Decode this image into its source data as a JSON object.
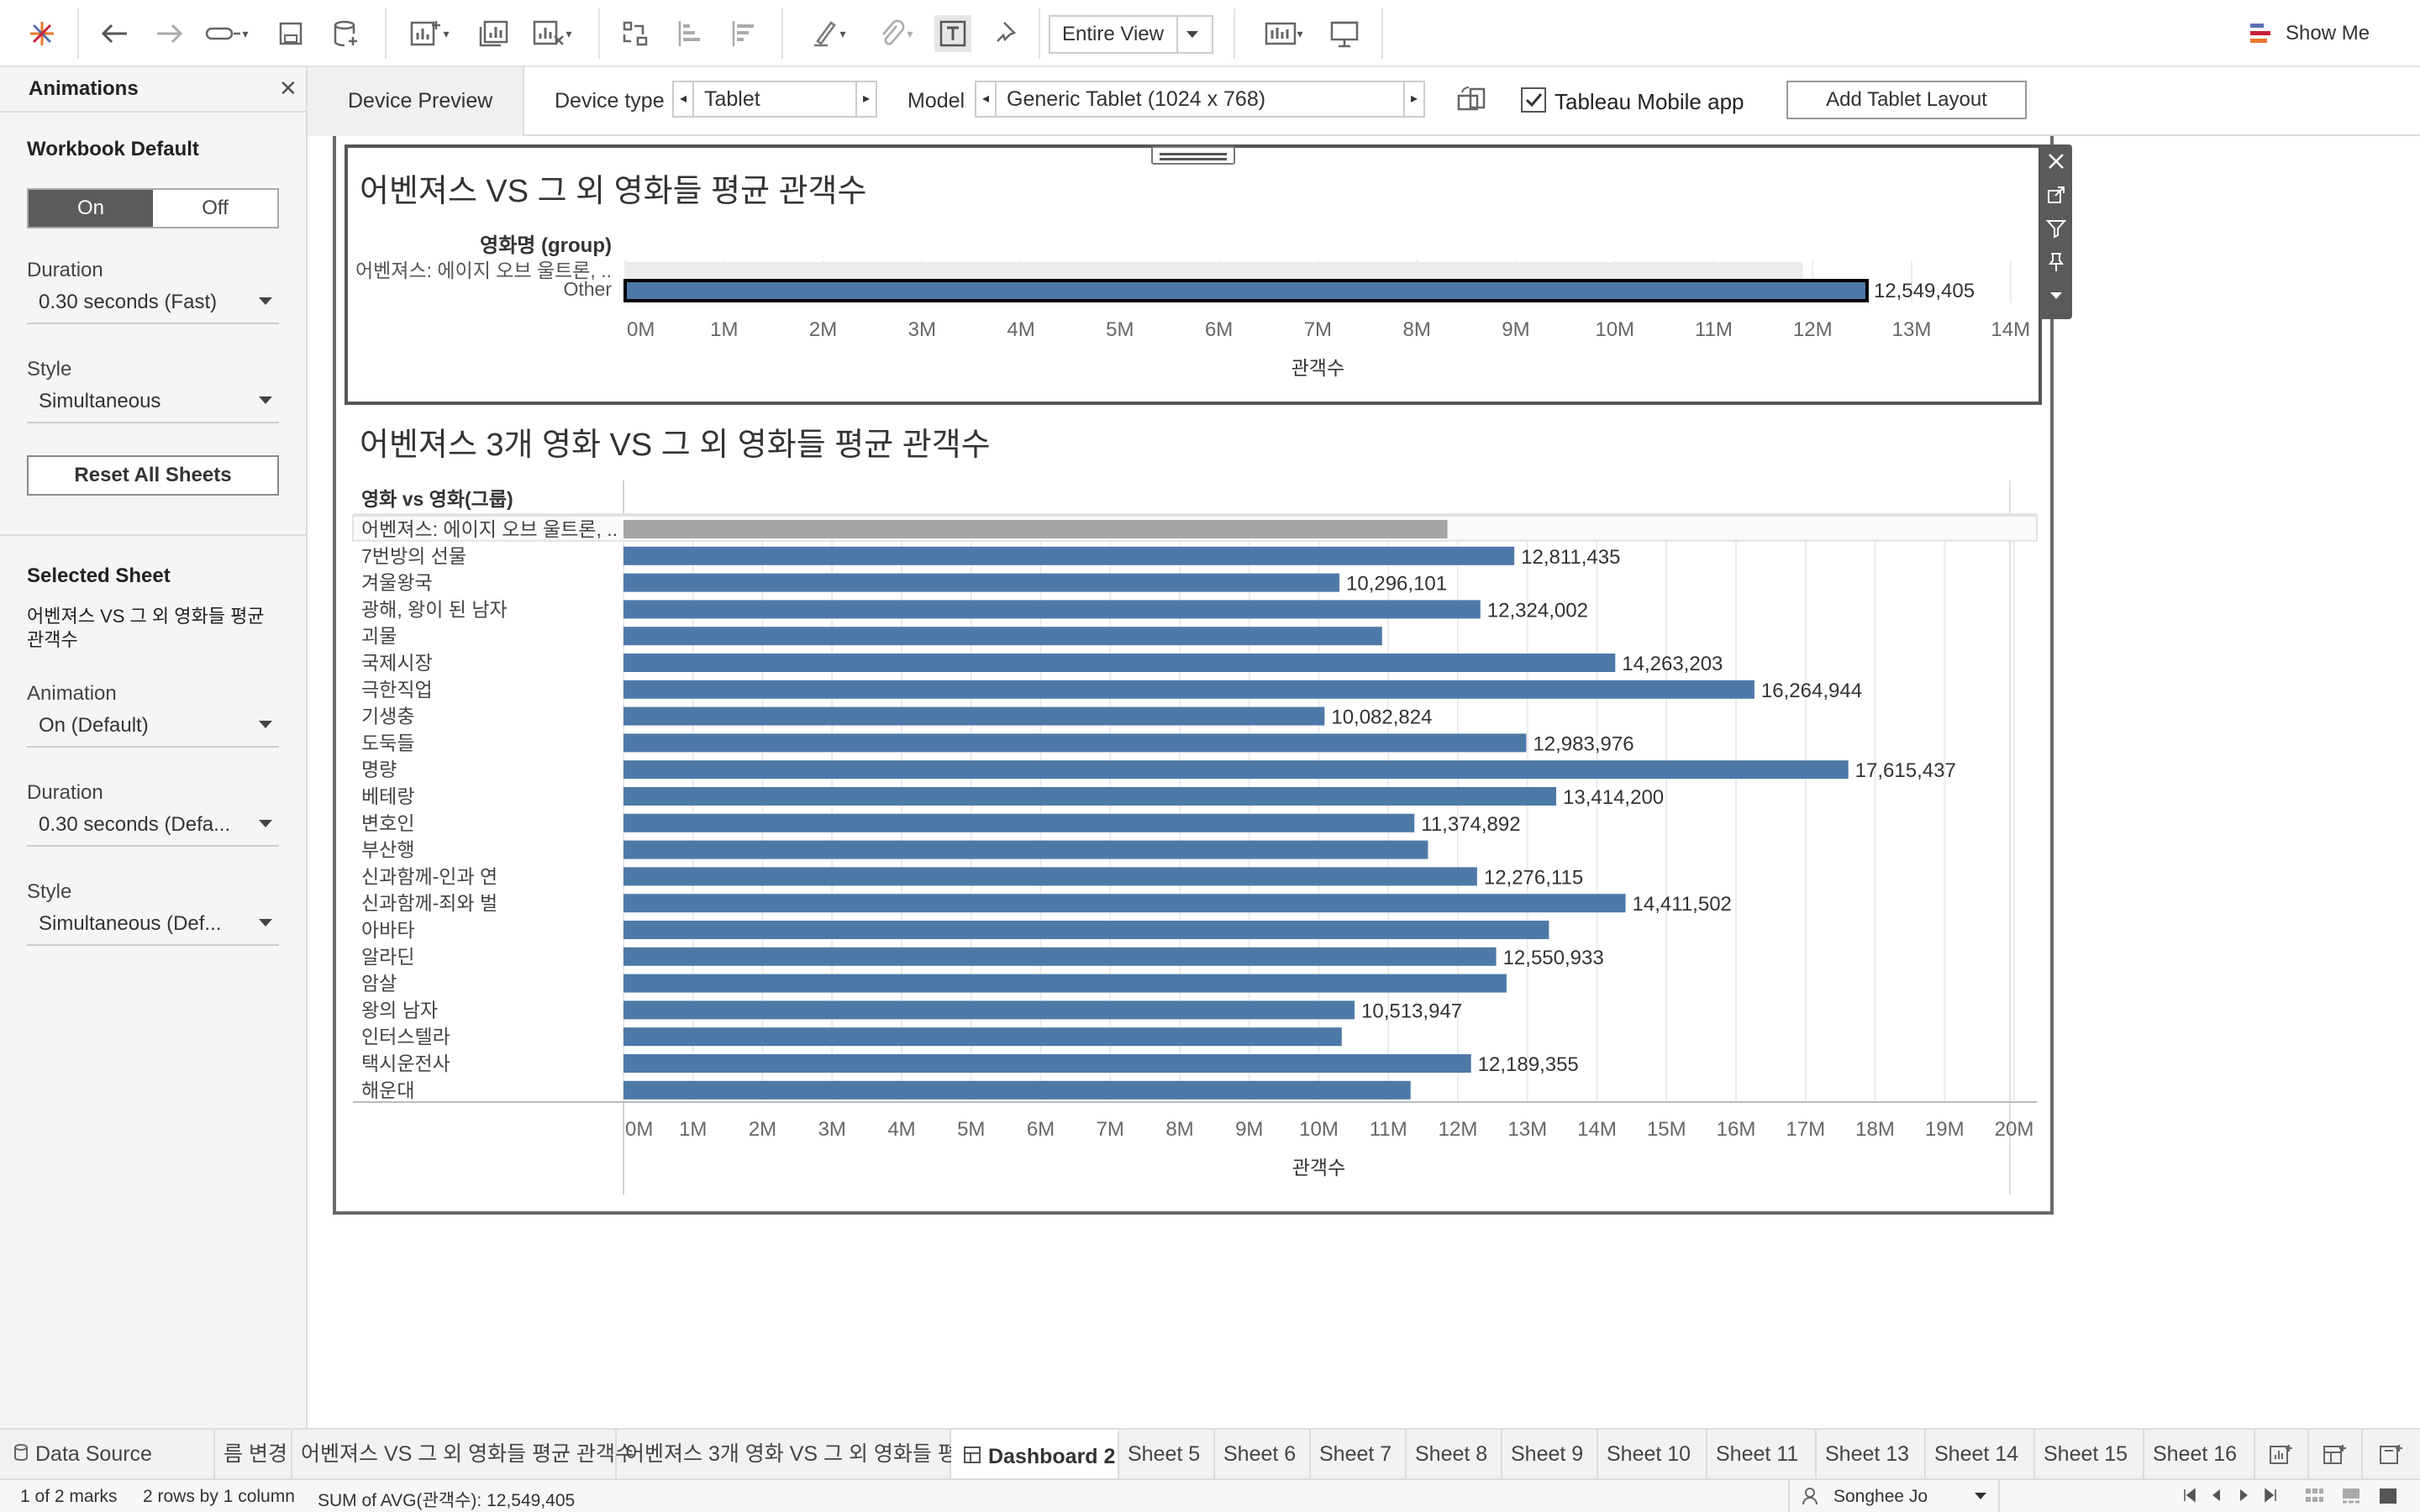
{
  "toolbar": {
    "view_mode": "Entire View",
    "show_me": "Show Me"
  },
  "left_panel": {
    "title": "Animations",
    "workbook_default": "Workbook Default",
    "toggle_on": "On",
    "toggle_off": "Off",
    "duration_label": "Duration",
    "duration_value": "0.30 seconds (Fast)",
    "style_label": "Style",
    "style_value": "Simultaneous",
    "reset_button": "Reset All Sheets",
    "selected_sheet_label": "Selected Sheet",
    "selected_sheet_line1": "어벤져스 VS 그 외 영화들 평균",
    "selected_sheet_line2": "관객수",
    "animation_label": "Animation",
    "animation_value": "On (Default)",
    "duration2_label": "Duration",
    "duration2_value": "0.30 seconds (Defa...",
    "style2_label": "Style",
    "style2_value": "Simultaneous (Def..."
  },
  "device_bar": {
    "preview_tab": "Device Preview",
    "device_type_label": "Device type",
    "device_type_value": "Tablet",
    "model_label": "Model",
    "model_value": "Generic Tablet (1024 x 768)",
    "mobile_app_label": "Tableau Mobile app",
    "mobile_app_checked": true,
    "add_layout_button": "Add Tablet Layout"
  },
  "colors": {
    "bar": "#4e79a7",
    "highlight_bar": "#a5a5a5",
    "grid": "#ececec"
  },
  "chart_data": [
    {
      "type": "bar",
      "orientation": "horizontal",
      "title": "어벤져스 VS 그 외 영화들 평균 관객수",
      "row_header": "영화명 (group)",
      "categories": [
        "어벤져스: 에이지 오브 울트론, ..",
        "Other"
      ],
      "values": [
        11900000,
        12549405
      ],
      "data_labels": [
        "",
        "12,549,405"
      ],
      "xlabel": "관객수",
      "xlim": [
        0,
        14000000
      ],
      "ticks": [
        "0M",
        "1M",
        "2M",
        "3M",
        "4M",
        "5M",
        "6M",
        "7M",
        "8M",
        "9M",
        "10M",
        "11M",
        "12M",
        "13M",
        "14M"
      ],
      "grid": true
    },
    {
      "type": "bar",
      "orientation": "horizontal",
      "title": "어벤져스 3개 영화 VS 그 외 영화들 평균 관객수",
      "row_header": "영화 vs 영화(그룹)",
      "categories": [
        "어벤져스: 에이지 오브 울트론, ..",
        "7번방의 선물",
        "겨울왕국",
        "광해, 왕이 된 남자",
        "괴물",
        "국제시장",
        "극한직업",
        "기생충",
        "도둑들",
        "명량",
        "베테랑",
        "변호인",
        "부산행",
        "신과함께-인과 연",
        "신과함께-죄와 벌",
        "아바타",
        "알라딘",
        "암살",
        "왕의 남자",
        "인터스텔라",
        "택시운전사",
        "해운대"
      ],
      "values": [
        11850000,
        12811435,
        10296101,
        12324002,
        10910000,
        14263203,
        16264944,
        10082824,
        12983976,
        17615437,
        13414200,
        11374892,
        11570000,
        12276115,
        14411502,
        13310000,
        12550933,
        12700000,
        10513947,
        10330000,
        12189355,
        11320000
      ],
      "data_labels": [
        "",
        "12,811,435",
        "10,296,101",
        "12,324,002",
        "",
        "14,263,203",
        "16,264,944",
        "10,082,824",
        "12,983,976",
        "17,615,437",
        "13,414,200",
        "11,374,892",
        "",
        "12,276,115",
        "14,411,502",
        "",
        "12,550,933",
        "",
        "10,513,947",
        "",
        "12,189,355",
        ""
      ],
      "xlabel": "관객수",
      "xlim": [
        0,
        20000000
      ],
      "ticks": [
        "0M",
        "1M",
        "2M",
        "3M",
        "4M",
        "5M",
        "6M",
        "7M",
        "8M",
        "9M",
        "10M",
        "11M",
        "12M",
        "13M",
        "14M",
        "15M",
        "16M",
        "17M",
        "18M",
        "19M",
        "20M"
      ],
      "grid": true
    }
  ],
  "tabs": [
    "Data Source",
    "름 변경",
    "어벤져스 VS 그 외 영화들 평균 관객수",
    "어벤져스 3개 영화 VS 그 외 영화들 평...",
    "Dashboard 2",
    "Sheet 5",
    "Sheet 6",
    "Sheet 7",
    "Sheet 8",
    "Sheet 9",
    "Sheet 10",
    "Sheet 11",
    "Sheet 13",
    "Sheet 14",
    "Sheet 15",
    "Sheet 16"
  ],
  "status": {
    "marks": "1 of 2 marks",
    "rows": "2 rows by 1 column",
    "sum": "SUM of AVG(관객수): 12,549,405",
    "user": "Songhee Jo"
  }
}
